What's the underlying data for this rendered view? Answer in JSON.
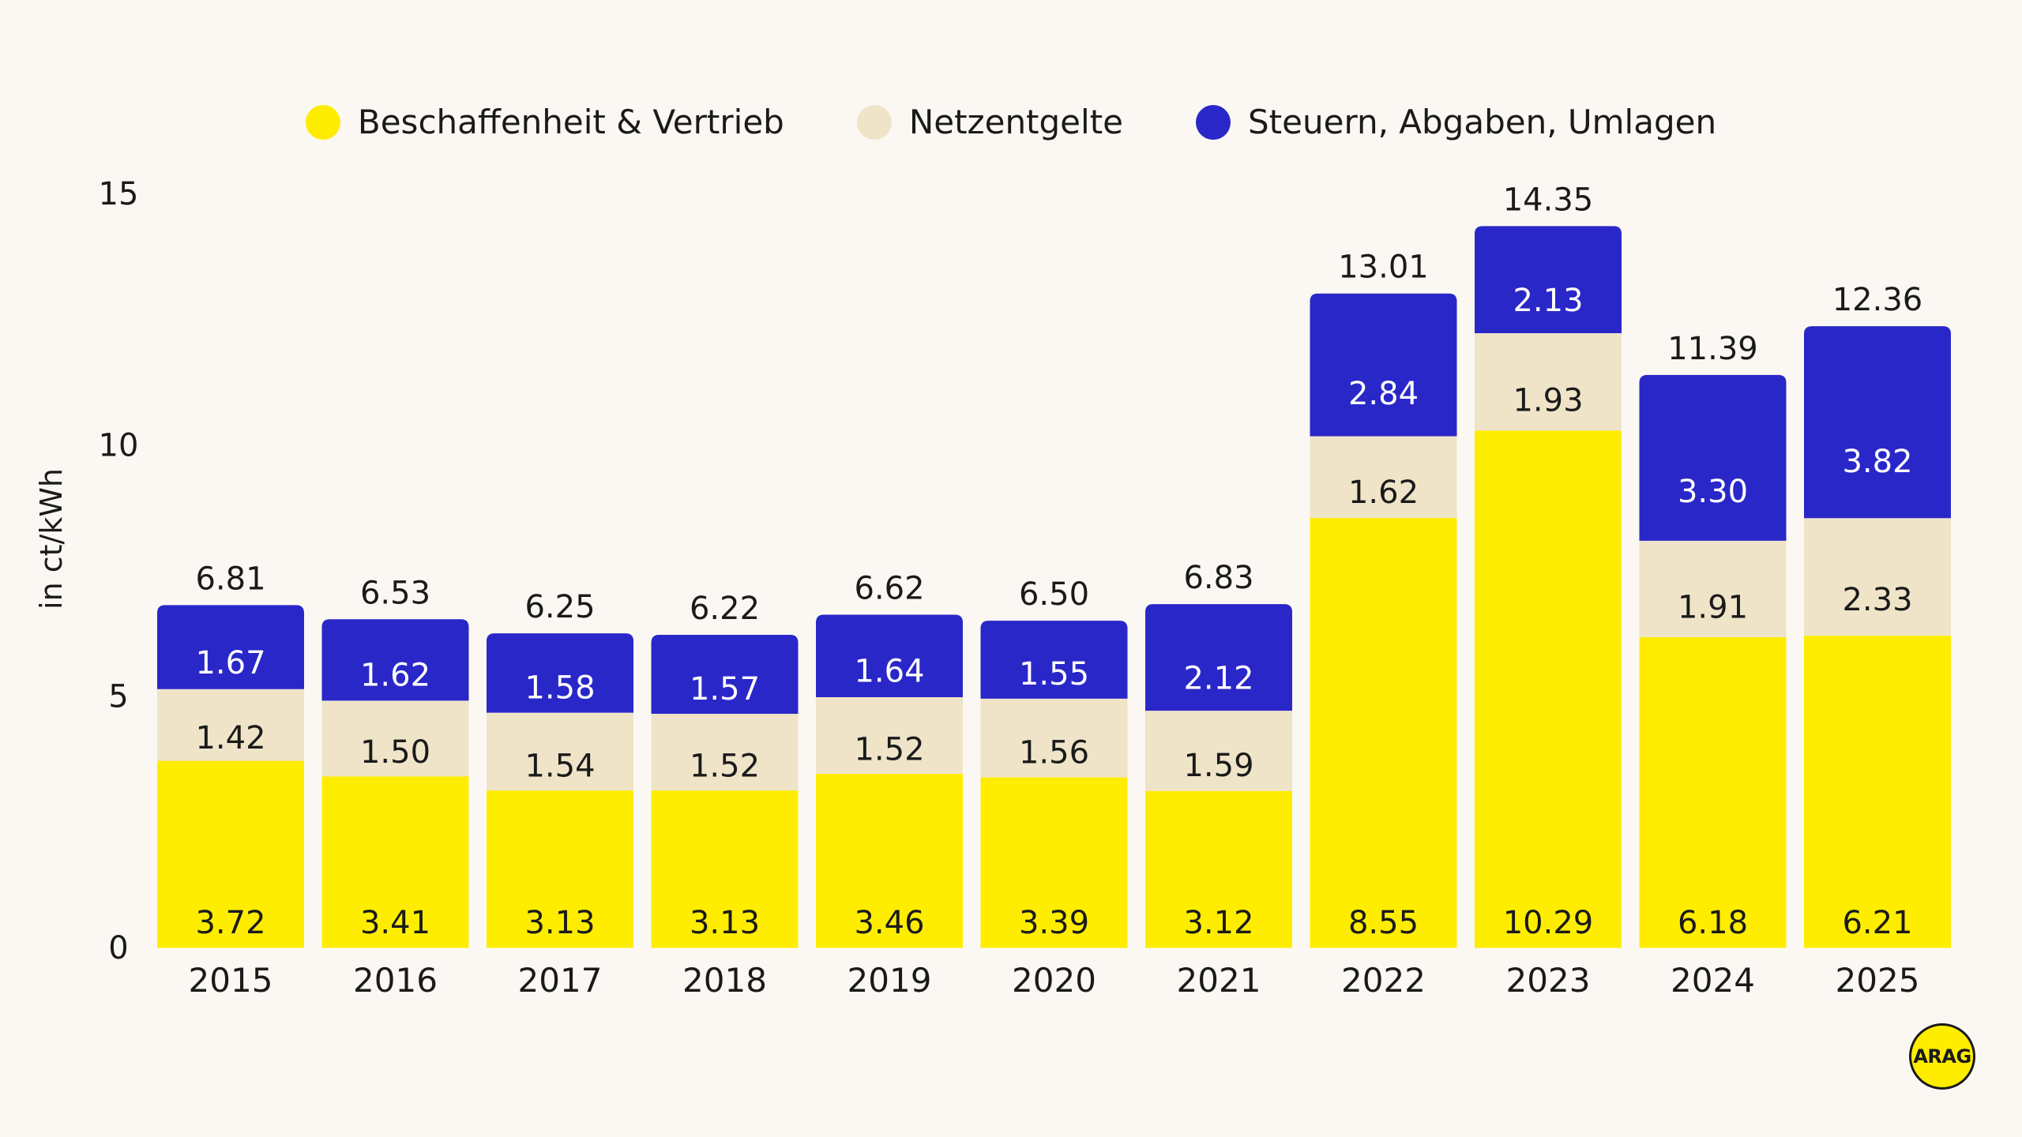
{
  "legend": [
    {
      "label": "Beschaffenheit & Vertrieb",
      "color": "#ffed00"
    },
    {
      "label": "Netzentgelte",
      "color": "#efe4c8"
    },
    {
      "label": "Steuern, Abgaben, Umlagen",
      "color": "#2a27c9"
    }
  ],
  "logo_text": "ARAG",
  "chart_data": {
    "type": "bar",
    "stacked": true,
    "title": "",
    "xlabel": "",
    "ylabel": "in ct/kWh",
    "ylim": [
      0,
      15
    ],
    "yticks": [
      0,
      5,
      10,
      15
    ],
    "categories": [
      "2015",
      "2016",
      "2017",
      "2018",
      "2019",
      "2020",
      "2021",
      "2022",
      "2023",
      "2024",
      "2025"
    ],
    "series": [
      {
        "name": "Beschaffenheit & Vertrieb",
        "color": "#ffed00",
        "label_color": "#1a1a1a",
        "values": [
          3.72,
          3.41,
          3.13,
          3.13,
          3.46,
          3.39,
          3.12,
          8.55,
          10.29,
          6.18,
          6.21
        ],
        "labels": [
          "3.72",
          "3.41",
          "3.13",
          "3.13",
          "3.46",
          "3.39",
          "3.12",
          "8.55",
          "10.29",
          "6.18",
          "6.21"
        ]
      },
      {
        "name": "Netzentgelte",
        "color": "#efe4c8",
        "label_color": "#1a1a1a",
        "values": [
          1.42,
          1.5,
          1.54,
          1.52,
          1.52,
          1.56,
          1.59,
          1.62,
          1.93,
          1.91,
          2.33
        ],
        "labels": [
          "1.42",
          "1.50",
          "1.54",
          "1.52",
          "1.52",
          "1.56",
          "1.59",
          "1.62",
          "1.93",
          "1.91",
          "2.33"
        ]
      },
      {
        "name": "Steuern, Abgaben, Umlagen",
        "color": "#2a27c9",
        "label_color": "#ffffff",
        "values": [
          1.67,
          1.62,
          1.58,
          1.57,
          1.64,
          1.55,
          2.12,
          2.84,
          2.13,
          3.3,
          3.82
        ],
        "labels": [
          "1.67",
          "1.62",
          "1.58",
          "1.57",
          "1.64",
          "1.55",
          "2.12",
          "2.84",
          "2.13",
          "3.30",
          "3.82"
        ]
      }
    ],
    "totals": [
      6.81,
      6.53,
      6.25,
      6.22,
      6.62,
      6.5,
      6.83,
      13.01,
      14.35,
      11.39,
      12.36
    ],
    "total_labels": [
      "6.81",
      "6.53",
      "6.25",
      "6.22",
      "6.62",
      "6.50",
      "6.83",
      "13.01",
      "14.35",
      "11.39",
      "12.36"
    ]
  }
}
